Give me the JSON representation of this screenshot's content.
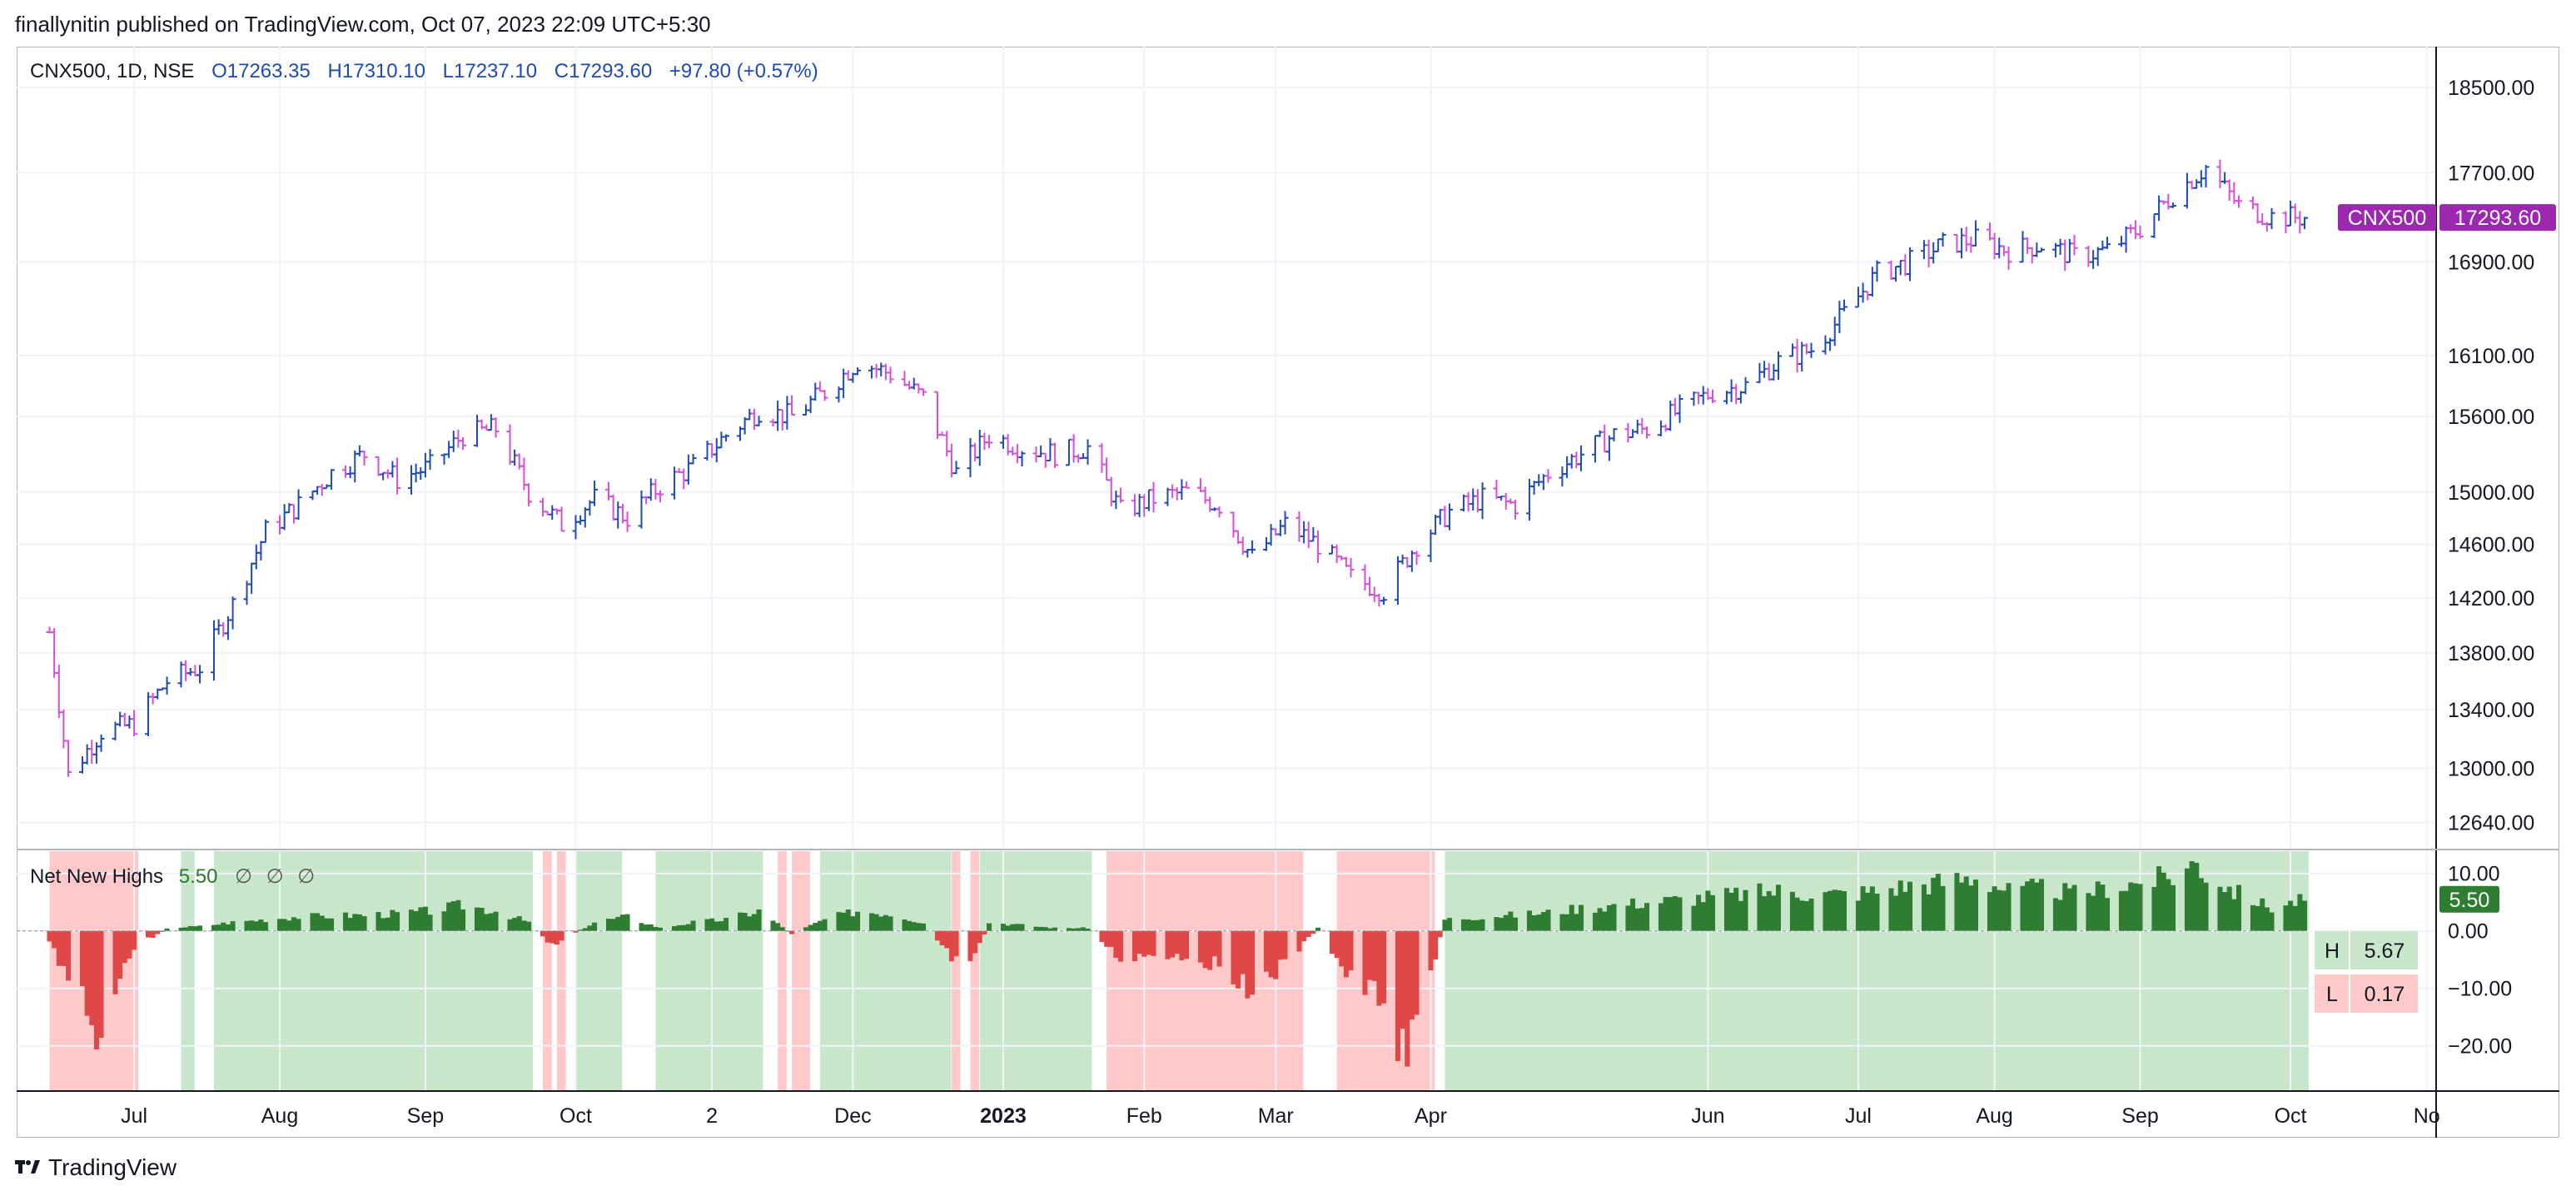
{
  "header": {
    "publish_line": "finallynitin published on TradingView.com, Oct 07, 2023 22:09 UTC+5:30"
  },
  "legend": {
    "symbol": "CNX500, 1D, NSE",
    "open": "O17263.35",
    "high": "H17310.10",
    "low": "L17237.10",
    "close": "C17293.60",
    "change": "+97.80 (+0.57%)"
  },
  "price_tag": {
    "symbol": "CNX500",
    "value": "17293.60"
  },
  "indicator": {
    "name": "Net New Highs",
    "value": "5.50",
    "placeholders": [
      "∅",
      "∅",
      "∅"
    ],
    "current_tag": "5.50",
    "high_label": "H",
    "high_value": "5.67",
    "low_label": "L",
    "low_value": "0.17"
  },
  "footer": {
    "brand": "TradingView"
  },
  "colors": {
    "up_bar": "#1e4bb8",
    "down_bar": "#d64fd6",
    "positive_hist": "#2e7d32",
    "negative_hist": "#e04848",
    "bg_positive": "#c8e6c9",
    "bg_negative": "#ffc9c9",
    "price_tag_bg": "#9c27b0"
  },
  "chart_data": [
    {
      "type": "ohlc",
      "title": "CNX500, 1D, NSE",
      "y_scale": "log",
      "yticks": [
        18500,
        17700,
        16900,
        16100,
        15600,
        15000,
        14600,
        14200,
        13800,
        13400,
        13000,
        12640
      ],
      "ytick_labels": [
        "18500.00",
        "17700.00",
        "16900.00",
        "16100.00",
        "15600.00",
        "15000.00",
        "14600.00",
        "14200.00",
        "13800.00",
        "13400.00",
        "13000.00",
        "12640.00"
      ],
      "xtick_labels": [
        "Jul",
        "Aug",
        "Sep",
        "Oct",
        "2",
        "Dec",
        "2023",
        "Feb",
        "Mar",
        "Apr",
        "Jun",
        "Jul",
        "Aug",
        "Sep",
        "Oct",
        "No"
      ],
      "close_path": [
        [
          "2022-06-13",
          13950
        ],
        [
          "2022-06-17",
          12950
        ],
        [
          "2022-06-24",
          13250
        ],
        [
          "2022-07-01",
          13300
        ],
        [
          "2022-07-08",
          13600
        ],
        [
          "2022-07-15",
          13700
        ],
        [
          "2022-07-22",
          14150
        ],
        [
          "2022-07-29",
          14700
        ],
        [
          "2022-08-05",
          14900
        ],
        [
          "2022-08-12",
          15150
        ],
        [
          "2022-08-19",
          15300
        ],
        [
          "2022-08-26",
          15100
        ],
        [
          "2022-09-02",
          15200
        ],
        [
          "2022-09-09",
          15450
        ],
        [
          "2022-09-16",
          15500
        ],
        [
          "2022-09-23",
          15000
        ],
        [
          "2022-09-30",
          14750
        ],
        [
          "2022-10-07",
          14950
        ],
        [
          "2022-10-14",
          14800
        ],
        [
          "2022-10-21",
          15050
        ],
        [
          "2022-10-28",
          15200
        ],
        [
          "2022-11-04",
          15450
        ],
        [
          "2022-11-11",
          15650
        ],
        [
          "2022-11-18",
          15600
        ],
        [
          "2022-11-25",
          15800
        ],
        [
          "2022-12-02",
          16050
        ],
        [
          "2022-12-09",
          15950
        ],
        [
          "2022-12-16",
          15750
        ],
        [
          "2022-12-23",
          15150
        ],
        [
          "2022-12-30",
          15450
        ],
        [
          "2023-01-06",
          15350
        ],
        [
          "2023-01-13",
          15300
        ],
        [
          "2023-01-20",
          15350
        ],
        [
          "2023-01-27",
          14850
        ],
        [
          "2023-02-03",
          14950
        ],
        [
          "2023-02-10",
          15000
        ],
        [
          "2023-02-17",
          14900
        ],
        [
          "2023-02-24",
          14500
        ],
        [
          "2023-03-03",
          14750
        ],
        [
          "2023-03-10",
          14600
        ],
        [
          "2023-03-17",
          14350
        ],
        [
          "2023-03-24",
          14250
        ],
        [
          "2023-03-31",
          14600
        ],
        [
          "2023-04-07",
          14850
        ],
        [
          "2023-04-14",
          14950
        ],
        [
          "2023-04-21",
          14900
        ],
        [
          "2023-04-28",
          15150
        ],
        [
          "2023-05-05",
          15300
        ],
        [
          "2023-05-12",
          15450
        ],
        [
          "2023-05-19",
          15500
        ],
        [
          "2023-05-26",
          15650
        ],
        [
          "2023-06-02",
          15800
        ],
        [
          "2023-06-09",
          15850
        ],
        [
          "2023-06-16",
          16050
        ],
        [
          "2023-06-23",
          16150
        ],
        [
          "2023-06-30",
          16450
        ],
        [
          "2023-07-07",
          16800
        ],
        [
          "2023-07-14",
          16900
        ],
        [
          "2023-07-21",
          17050
        ],
        [
          "2023-07-28",
          17100
        ],
        [
          "2023-08-04",
          17000
        ],
        [
          "2023-08-11",
          17050
        ],
        [
          "2023-08-18",
          16950
        ],
        [
          "2023-08-25",
          17000
        ],
        [
          "2023-09-01",
          17200
        ],
        [
          "2023-09-08",
          17500
        ],
        [
          "2023-09-15",
          17750
        ],
        [
          "2023-09-22",
          17400
        ],
        [
          "2023-09-29",
          17300
        ],
        [
          "2023-10-06",
          17293.6
        ]
      ]
    },
    {
      "type": "bar",
      "title": "Net New Highs",
      "yticks": [
        10,
        0,
        -10,
        -20
      ],
      "ytick_labels": [
        "10.00",
        "0.00",
        "−10.00",
        "−20.00"
      ],
      "ylim": [
        -27,
        13
      ],
      "regions": [
        [
          "2022-06-13",
          "2022-07-01",
          "negative"
        ],
        [
          "2022-07-11",
          "2022-07-13",
          "positive"
        ],
        [
          "2022-07-18",
          "2022-09-23",
          "positive"
        ],
        [
          "2022-09-26",
          "2022-09-27",
          "negative"
        ],
        [
          "2022-09-29",
          "2022-09-30",
          "negative"
        ],
        [
          "2022-10-03",
          "2022-10-12",
          "positive"
        ],
        [
          "2022-10-20",
          "2022-11-11",
          "positive"
        ],
        [
          "2022-11-15",
          "2022-11-16",
          "negative"
        ],
        [
          "2022-11-18",
          "2022-11-21",
          "negative"
        ],
        [
          "2022-11-24",
          "2022-12-21",
          "positive"
        ],
        [
          "2022-12-22",
          "2022-12-23",
          "negative"
        ],
        [
          "2022-12-26",
          "2022-12-27",
          "negative"
        ],
        [
          "2022-12-28",
          "2023-01-20",
          "positive"
        ],
        [
          "2023-01-24",
          "2023-03-06",
          "negative"
        ],
        [
          "2023-03-14",
          "2023-04-03",
          "negative"
        ],
        [
          "2023-04-06",
          "2023-10-06",
          "positive"
        ]
      ],
      "values_by_period": [
        [
          "2022-06-13",
          -2
        ],
        [
          "2022-06-17",
          -8
        ],
        [
          "2022-06-21",
          -12
        ],
        [
          "2022-06-23",
          -22
        ],
        [
          "2022-06-27",
          -9
        ],
        [
          "2022-07-01",
          -3
        ],
        [
          "2022-07-08",
          0.5
        ],
        [
          "2022-07-15",
          0.8
        ],
        [
          "2022-07-22",
          1.5
        ],
        [
          "2022-07-29",
          2.0
        ],
        [
          "2022-08-05",
          2.5
        ],
        [
          "2022-08-12",
          2.6
        ],
        [
          "2022-08-19",
          2.8
        ],
        [
          "2022-08-26",
          3.0
        ],
        [
          "2022-09-02",
          3.5
        ],
        [
          "2022-09-09",
          4.5
        ],
        [
          "2022-09-16",
          3.5
        ],
        [
          "2022-09-23",
          1.5
        ],
        [
          "2022-09-28",
          -2.5
        ],
        [
          "2022-10-07",
          1.5
        ],
        [
          "2022-10-14",
          2.5
        ],
        [
          "2022-10-21",
          0.5
        ],
        [
          "2022-10-28",
          1.5
        ],
        [
          "2022-11-04",
          2.0
        ],
        [
          "2022-11-11",
          3.5
        ],
        [
          "2022-11-18",
          -0.5
        ],
        [
          "2022-11-25",
          2.0
        ],
        [
          "2022-12-02",
          3.5
        ],
        [
          "2022-12-09",
          3.0
        ],
        [
          "2022-12-16",
          1.5
        ],
        [
          "2022-12-22",
          -5
        ],
        [
          "2022-12-26",
          -7
        ],
        [
          "2022-12-30",
          1.5
        ],
        [
          "2023-01-06",
          1.0
        ],
        [
          "2023-01-13",
          0.5
        ],
        [
          "2023-01-20",
          0.5
        ],
        [
          "2023-01-27",
          -5
        ],
        [
          "2023-02-03",
          -4
        ],
        [
          "2023-02-10",
          -4.5
        ],
        [
          "2023-02-17",
          -6
        ],
        [
          "2023-02-24",
          -10
        ],
        [
          "2023-03-03",
          -6
        ],
        [
          "2023-03-10",
          0.5
        ],
        [
          "2023-03-17",
          -9
        ],
        [
          "2023-03-24",
          -12
        ],
        [
          "2023-03-29",
          -23
        ],
        [
          "2023-04-06",
          2.0
        ],
        [
          "2023-04-14",
          2.5
        ],
        [
          "2023-04-21",
          2.8
        ],
        [
          "2023-04-28",
          3.2
        ],
        [
          "2023-05-05",
          4.0
        ],
        [
          "2023-05-12",
          4.5
        ],
        [
          "2023-05-19",
          5.0
        ],
        [
          "2023-05-26",
          5.5
        ],
        [
          "2023-06-02",
          6.0
        ],
        [
          "2023-06-09",
          6.5
        ],
        [
          "2023-06-16",
          7.0
        ],
        [
          "2023-06-23",
          6.5
        ],
        [
          "2023-06-30",
          6.5
        ],
        [
          "2023-07-07",
          7.0
        ],
        [
          "2023-07-14",
          8.0
        ],
        [
          "2023-07-21",
          8.5
        ],
        [
          "2023-07-28",
          9.5
        ],
        [
          "2023-08-04",
          7.0
        ],
        [
          "2023-08-11",
          7.5
        ],
        [
          "2023-08-18",
          6.5
        ],
        [
          "2023-08-25",
          7.5
        ],
        [
          "2023-09-01",
          8.5
        ],
        [
          "2023-09-08",
          9.5
        ],
        [
          "2023-09-13",
          12.0
        ],
        [
          "2023-09-15",
          10.0
        ],
        [
          "2023-09-22",
          6.5
        ],
        [
          "2023-09-29",
          4.0
        ],
        [
          "2023-10-06",
          5.5
        ]
      ]
    }
  ]
}
